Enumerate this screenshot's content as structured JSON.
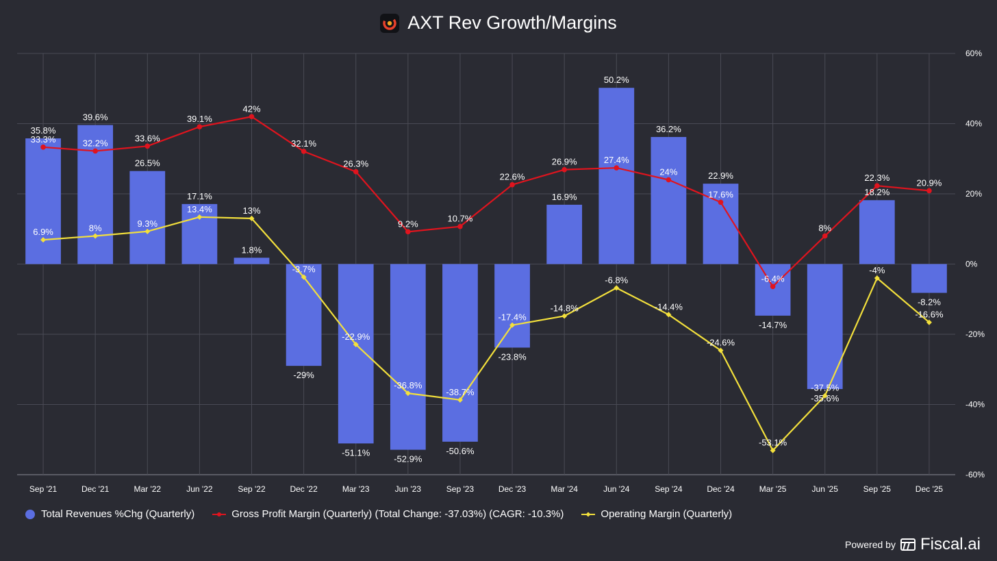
{
  "chart_data": {
    "type": "bar",
    "title": "AXT Rev Growth/Margins",
    "categories": [
      "Sep '21",
      "Dec '21",
      "Mar '22",
      "Jun '22",
      "Sep '22",
      "Dec '22",
      "Mar '23",
      "Jun '23",
      "Sep '23",
      "Dec '23",
      "Mar '24",
      "Jun '24",
      "Sep '24",
      "Dec '24",
      "Mar '25",
      "Jun '25",
      "Sep '25",
      "Dec '25"
    ],
    "ylim": [
      -60,
      60
    ],
    "yticks": [
      60,
      40,
      20,
      0,
      -20,
      -40,
      -60
    ],
    "ytick_labels": [
      "60%",
      "40%",
      "20%",
      "0%",
      "-20%",
      "-40%",
      "-60%"
    ],
    "grid": true,
    "series": [
      {
        "name": "Total Revenues %Chg (Quarterly)",
        "kind": "bar",
        "color": "#5b6ee1",
        "values": [
          35.8,
          39.6,
          26.5,
          17.1,
          1.8,
          -29,
          -51.1,
          -52.9,
          -50.6,
          -23.8,
          16.9,
          50.2,
          36.2,
          22.9,
          -14.7,
          -35.6,
          18.2,
          -8.2
        ],
        "labels": [
          "35.8%",
          "39.6%",
          "26.5%",
          "17.1%",
          "1.8%",
          "-29%",
          "-51.1%",
          "-52.9%",
          "-50.6%",
          "-23.8%",
          "16.9%",
          "50.2%",
          "36.2%",
          "22.9%",
          "-14.7%",
          "-35.6%",
          "18.2%",
          "-8.2%"
        ]
      },
      {
        "name": "Gross Profit Margin (Quarterly) (Total Change: -37.03%) (CAGR: -10.3%)",
        "kind": "line",
        "color": "#e0141e",
        "values": [
          33.3,
          32.2,
          33.6,
          39.1,
          42,
          32.1,
          26.3,
          9.2,
          10.7,
          22.6,
          26.9,
          27.4,
          24,
          17.6,
          -6.4,
          8,
          22.3,
          20.9
        ],
        "labels": [
          "33.3%",
          "32.2%",
          "33.6%",
          "39.1%",
          "42%",
          "32.1%",
          "26.3%",
          "9.2%",
          "10.7%",
          "22.6%",
          "26.9%",
          "27.4%",
          "24%",
          "17.6%",
          "-6.4%",
          "8%",
          "22.3%",
          "20.9%"
        ]
      },
      {
        "name": "Operating Margin (Quarterly)",
        "kind": "line",
        "color": "#f3e03c",
        "values": [
          6.9,
          8,
          9.3,
          13.4,
          13,
          -3.7,
          -22.9,
          -36.8,
          -38.7,
          -17.4,
          -14.8,
          -6.8,
          -14.4,
          -24.6,
          -53.1,
          -37.5,
          -4,
          -16.6
        ],
        "labels": [
          "6.9%",
          "8%",
          "9.3%",
          "13.4%",
          "13%",
          "-3.7%",
          "-22.9%",
          "-36.8%",
          "-38.7%",
          "-17.4%",
          "-14.8%",
          "-6.8%",
          "-14.4%",
          "-24.6%",
          "-53.1%",
          "-37.5%",
          "-4%",
          "-16.6%"
        ]
      }
    ]
  },
  "legend": {
    "revenue": "Total Revenues %Chg (Quarterly)",
    "gross": "Gross Profit Margin (Quarterly) (Total Change: -37.03%) (CAGR: -10.3%)",
    "operating": "Operating Margin (Quarterly)"
  },
  "footer": {
    "powered_by": "Powered by",
    "brand": "Fiscal.ai"
  },
  "colors": {
    "background": "#2a2b33",
    "bar": "#5b6ee1",
    "gross": "#e0141e",
    "operating": "#f3e03c",
    "grid": "#4a4b55"
  },
  "icons": {
    "logo": "axt-logo-icon",
    "brand": "fiscal-logo-icon"
  }
}
